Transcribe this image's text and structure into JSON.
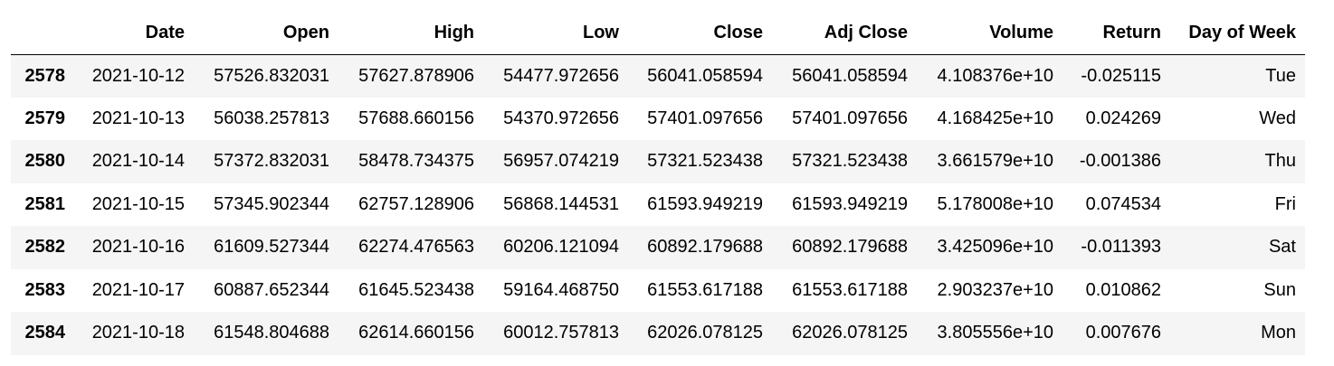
{
  "table": {
    "columns": [
      "",
      "Date",
      "Open",
      "High",
      "Low",
      "Close",
      "Adj Close",
      "Volume",
      "Return",
      "Day of Week"
    ],
    "rows": [
      {
        "index": "2578",
        "date": "2021-10-12",
        "open": "57526.832031",
        "high": "57627.878906",
        "low": "54477.972656",
        "close": "56041.058594",
        "adj_close": "56041.058594",
        "volume": "4.108376e+10",
        "return": "-0.025115",
        "day": "Tue"
      },
      {
        "index": "2579",
        "date": "2021-10-13",
        "open": "56038.257813",
        "high": "57688.660156",
        "low": "54370.972656",
        "close": "57401.097656",
        "adj_close": "57401.097656",
        "volume": "4.168425e+10",
        "return": "0.024269",
        "day": "Wed"
      },
      {
        "index": "2580",
        "date": "2021-10-14",
        "open": "57372.832031",
        "high": "58478.734375",
        "low": "56957.074219",
        "close": "57321.523438",
        "adj_close": "57321.523438",
        "volume": "3.661579e+10",
        "return": "-0.001386",
        "day": "Thu"
      },
      {
        "index": "2581",
        "date": "2021-10-15",
        "open": "57345.902344",
        "high": "62757.128906",
        "low": "56868.144531",
        "close": "61593.949219",
        "adj_close": "61593.949219",
        "volume": "5.178008e+10",
        "return": "0.074534",
        "day": "Fri"
      },
      {
        "index": "2582",
        "date": "2021-10-16",
        "open": "61609.527344",
        "high": "62274.476563",
        "low": "60206.121094",
        "close": "60892.179688",
        "adj_close": "60892.179688",
        "volume": "3.425096e+10",
        "return": "-0.011393",
        "day": "Sat"
      },
      {
        "index": "2583",
        "date": "2021-10-17",
        "open": "60887.652344",
        "high": "61645.523438",
        "low": "59164.468750",
        "close": "61553.617188",
        "adj_close": "61553.617188",
        "volume": "2.903237e+10",
        "return": "0.010862",
        "day": "Sun"
      },
      {
        "index": "2584",
        "date": "2021-10-18",
        "open": "61548.804688",
        "high": "62614.660156",
        "low": "60012.757813",
        "close": "62026.078125",
        "adj_close": "62026.078125",
        "volume": "3.805556e+10",
        "return": "0.007676",
        "day": "Mon"
      }
    ]
  }
}
